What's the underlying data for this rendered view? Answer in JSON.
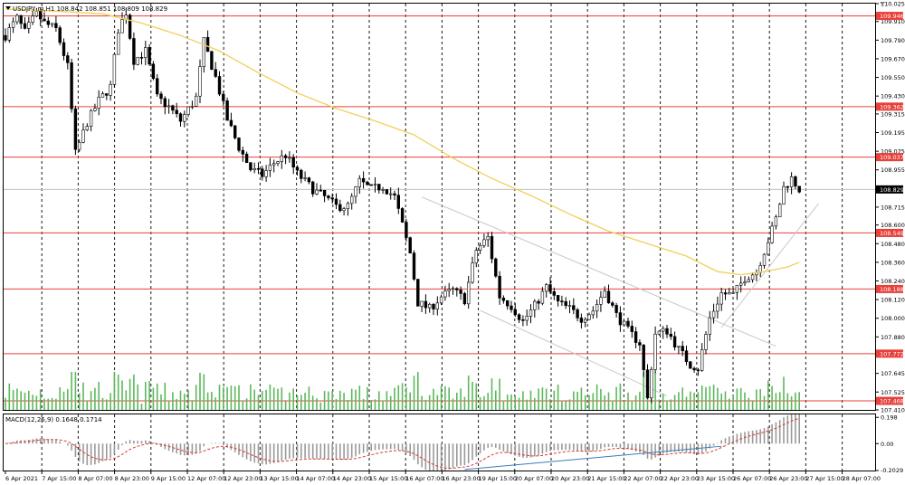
{
  "colors": {
    "bull": "#000000",
    "bear": "#000000",
    "volume": "#5cb85c",
    "sma": "#f0d05a",
    "level": "#e8403a",
    "level_label_bg": "#e8403a",
    "last_price_label_bg": "#000000",
    "macd_hist": "#9a9a9a",
    "macd_signal": "#d93a2f",
    "trend_line": "#3a7dc0",
    "channel": "#c8c8c8",
    "grid": "#000000"
  },
  "chart_data": {
    "type": "candlestick",
    "symbol_header": "USDJPY,m,H1  108.842 108.851 108.809 108.829",
    "ylim": [
      107.41,
      110.025
    ],
    "y_ticks": [
      {
        "label": "110.025",
        "v": 110.025
      },
      {
        "label": "109.910",
        "v": 109.91
      },
      {
        "label": "109.790",
        "v": 109.79
      },
      {
        "label": "109.670",
        "v": 109.67
      },
      {
        "label": "109.550",
        "v": 109.55
      },
      {
        "label": "109.430",
        "v": 109.43
      },
      {
        "label": "109.315",
        "v": 109.315
      },
      {
        "label": "109.195",
        "v": 109.195
      },
      {
        "label": "109.075",
        "v": 109.075
      },
      {
        "label": "108.955",
        "v": 108.955
      },
      {
        "label": "108.715",
        "v": 108.715
      },
      {
        "label": "108.600",
        "v": 108.6
      },
      {
        "label": "108.480",
        "v": 108.48
      },
      {
        "label": "108.360",
        "v": 108.36
      },
      {
        "label": "108.240",
        "v": 108.24
      },
      {
        "label": "108.120",
        "v": 108.12
      },
      {
        "label": "108.000",
        "v": 108.0
      },
      {
        "label": "107.880",
        "v": 107.88
      },
      {
        "label": "107.645",
        "v": 107.645
      },
      {
        "label": "107.525",
        "v": 107.525
      },
      {
        "label": "107.410",
        "v": 107.41
      }
    ],
    "levels": [
      {
        "label": "109.946",
        "v": 109.946
      },
      {
        "label": "109.362",
        "v": 109.362
      },
      {
        "label": "109.037",
        "v": 109.037
      },
      {
        "label": "108.549",
        "v": 108.549
      },
      {
        "label": "108.188",
        "v": 108.188
      },
      {
        "label": "107.772",
        "v": 107.772
      },
      {
        "label": "107.468",
        "v": 107.468
      }
    ],
    "last_price": {
      "label": "108.829",
      "v": 108.829
    },
    "x_labels": [
      "6 Apr 2021",
      "7 Apr 15:00",
      "8 Apr 07:00",
      "8 Apr 23:00",
      "9 Apr 15:00",
      "12 Apr 07:00",
      "12 Apr 23:00",
      "13 Apr 15:00",
      "14 Apr 07:00",
      "14 Apr 23:00",
      "15 Apr 15:00",
      "16 Apr 07:00",
      "16 Apr 23:00",
      "19 Apr 15:00",
      "20 Apr 07:00",
      "20 Apr 23:00",
      "21 Apr 15:00",
      "22 Apr 07:00",
      "22 Apr 23:00",
      "23 Apr 15:00",
      "26 Apr 07:00",
      "26 Apr 23:00",
      "27 Apr 15:00",
      "28 Apr 07:00"
    ],
    "price_path": [
      [
        0,
        109.82
      ],
      [
        3,
        109.93
      ],
      [
        5,
        109.84
      ],
      [
        8,
        109.96
      ],
      [
        10,
        109.9
      ],
      [
        13,
        109.86
      ],
      [
        16,
        109.62
      ],
      [
        18,
        109.06
      ],
      [
        21,
        109.26
      ],
      [
        24,
        109.4
      ],
      [
        27,
        109.49
      ],
      [
        29,
        109.86
      ],
      [
        31,
        109.97
      ],
      [
        33,
        109.66
      ],
      [
        36,
        109.72
      ],
      [
        39,
        109.42
      ],
      [
        42,
        109.36
      ],
      [
        45,
        109.27
      ],
      [
        49,
        109.42
      ],
      [
        51,
        109.78
      ],
      [
        54,
        109.55
      ],
      [
        57,
        109.28
      ],
      [
        60,
        109.1
      ],
      [
        63,
        108.96
      ],
      [
        66,
        108.92
      ],
      [
        69,
        109.0
      ],
      [
        72,
        109.05
      ],
      [
        75,
        108.93
      ],
      [
        79,
        108.83
      ],
      [
        82,
        108.78
      ],
      [
        85,
        108.72
      ],
      [
        88,
        108.72
      ],
      [
        91,
        108.88
      ],
      [
        94,
        108.83
      ],
      [
        97,
        108.85
      ],
      [
        100,
        108.78
      ],
      [
        104,
        108.42
      ],
      [
        106,
        108.1
      ],
      [
        109,
        108.06
      ],
      [
        112,
        108.14
      ],
      [
        115,
        108.18
      ],
      [
        118,
        108.12
      ],
      [
        121,
        108.44
      ],
      [
        124,
        108.52
      ],
      [
        127,
        108.14
      ],
      [
        130,
        108.08
      ],
      [
        133,
        107.98
      ],
      [
        136,
        108.08
      ],
      [
        139,
        108.2
      ],
      [
        142,
        108.1
      ],
      [
        145,
        108.06
      ],
      [
        148,
        108.0
      ],
      [
        151,
        108.05
      ],
      [
        154,
        108.18
      ],
      [
        157,
        108.02
      ],
      [
        160,
        107.92
      ],
      [
        163,
        107.84
      ],
      [
        165,
        107.48
      ],
      [
        167,
        107.9
      ],
      [
        170,
        107.92
      ],
      [
        173,
        107.8
      ],
      [
        176,
        107.7
      ],
      [
        178,
        107.68
      ],
      [
        181,
        108.0
      ],
      [
        184,
        108.16
      ],
      [
        187,
        108.15
      ],
      [
        190,
        108.26
      ],
      [
        193,
        108.3
      ],
      [
        196,
        108.5
      ],
      [
        198,
        108.64
      ],
      [
        200,
        108.84
      ],
      [
        202,
        108.9
      ],
      [
        204,
        108.83
      ]
    ],
    "bar_count": 205,
    "sma_path": [
      [
        0,
        109.99
      ],
      [
        10,
        109.98
      ],
      [
        25,
        109.96
      ],
      [
        35,
        109.9
      ],
      [
        45,
        109.82
      ],
      [
        55,
        109.72
      ],
      [
        65,
        109.58
      ],
      [
        75,
        109.45
      ],
      [
        85,
        109.35
      ],
      [
        95,
        109.27
      ],
      [
        105,
        109.18
      ],
      [
        115,
        109.03
      ],
      [
        125,
        108.9
      ],
      [
        135,
        108.79
      ],
      [
        145,
        108.67
      ],
      [
        155,
        108.56
      ],
      [
        165,
        108.48
      ],
      [
        175,
        108.4
      ],
      [
        183,
        108.3
      ],
      [
        189,
        108.28
      ],
      [
        195,
        108.3
      ],
      [
        201,
        108.33
      ],
      [
        204,
        108.36
      ]
    ],
    "channel_lines": [
      [
        [
          107,
          108.78
        ],
        [
          198,
          107.82
        ]
      ],
      [
        [
          122,
          108.05
        ],
        [
          170,
          107.5
        ]
      ],
      [
        [
          184,
          107.94
        ],
        [
          209,
          108.74
        ]
      ]
    ],
    "macd": {
      "label": "MACD(12,26,9)  0.1648  0.1714",
      "ylim": [
        -0.2029,
        0.22
      ],
      "y_ticks": [
        {
          "label": "0.198",
          "v": 0.198
        },
        {
          "label": "0.00",
          "v": 0.0
        },
        {
          "label": "-0.2029",
          "v": -0.2029
        }
      ]
    },
    "macd_trend_line": [
      [
        118,
        -0.195
      ],
      [
        184,
        -0.02
      ]
    ]
  }
}
